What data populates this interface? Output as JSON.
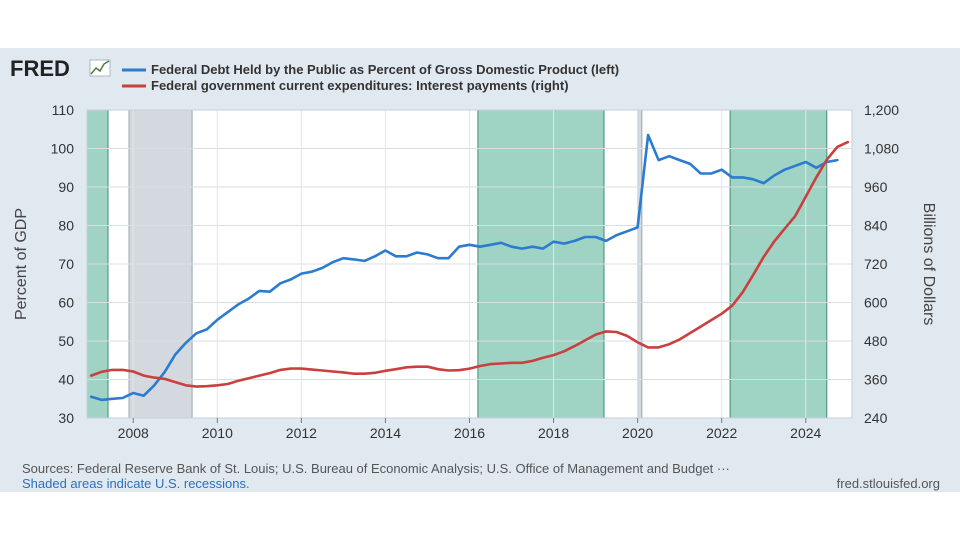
{
  "brand": {
    "logo": "FRED",
    "site": "fred.stlouisfed.org"
  },
  "colors": {
    "panel": "#e1e9f0",
    "series_left": "#2b7bd0",
    "series_right": "#c9403f",
    "recession": "#9fd3c3",
    "recession_alt": "#d3d9df"
  },
  "footer": {
    "sources": "Sources: Federal Reserve Bank of St. Louis; U.S. Bureau of Economic Analysis; U.S. Office of Management and Budget ···",
    "note": "Shaded areas indicate U.S. recessions."
  },
  "chart_data": {
    "type": "line",
    "title": "",
    "xlabel": "",
    "ylabel_left": "Percent of GDP",
    "ylabel_right": "Billions of Dollars",
    "xlim": [
      2006.9,
      2025.1
    ],
    "ylim_left": [
      30,
      110
    ],
    "ylim_right": [
      240,
      1200
    ],
    "x_ticks": [
      2008,
      2010,
      2012,
      2014,
      2016,
      2018,
      2020,
      2022,
      2024
    ],
    "x_tick_labels": [
      "2008",
      "2010",
      "2012",
      "2014",
      "2016",
      "2018",
      "2020",
      "2022",
      "2024"
    ],
    "y_ticks_left": [
      30,
      40,
      50,
      60,
      70,
      80,
      90,
      100,
      110
    ],
    "y_tick_labels_left": [
      "30",
      "40",
      "50",
      "60",
      "70",
      "80",
      "90",
      "100",
      "110"
    ],
    "y_ticks_right": [
      240,
      360,
      480,
      600,
      720,
      840,
      960,
      1080,
      1200
    ],
    "y_tick_labels_right": [
      "240",
      "360",
      "480",
      "600",
      "720",
      "840",
      "960",
      "1,080",
      "1,200"
    ],
    "shaded_periods": [
      {
        "start": 2006.9,
        "end": 2007.4,
        "style": "recession"
      },
      {
        "start": 2007.9,
        "end": 2009.4,
        "style": "recession_alt"
      },
      {
        "start": 2016.2,
        "end": 2019.2,
        "style": "recession"
      },
      {
        "start": 2020.0,
        "end": 2020.1,
        "style": "recession_alt"
      },
      {
        "start": 2022.2,
        "end": 2024.5,
        "style": "recession"
      }
    ],
    "series": [
      {
        "name": "Federal Debt Held by the Public as Percent of Gross Domestic Product (left)",
        "axis": "left",
        "color": "#2b7bd0",
        "x": [
          2007.0,
          2007.25,
          2007.5,
          2007.75,
          2008.0,
          2008.25,
          2008.5,
          2008.75,
          2009.0,
          2009.25,
          2009.5,
          2009.75,
          2010.0,
          2010.25,
          2010.5,
          2010.75,
          2011.0,
          2011.25,
          2011.5,
          2011.75,
          2012.0,
          2012.25,
          2012.5,
          2012.75,
          2013.0,
          2013.25,
          2013.5,
          2013.75,
          2014.0,
          2014.25,
          2014.5,
          2014.75,
          2015.0,
          2015.25,
          2015.5,
          2015.75,
          2016.0,
          2016.25,
          2016.5,
          2016.75,
          2017.0,
          2017.25,
          2017.5,
          2017.75,
          2018.0,
          2018.25,
          2018.5,
          2018.75,
          2019.0,
          2019.25,
          2019.5,
          2019.75,
          2020.0,
          2020.25,
          2020.5,
          2020.75,
          2021.0,
          2021.25,
          2021.5,
          2021.75,
          2022.0,
          2022.25,
          2022.5,
          2022.75,
          2023.0,
          2023.25,
          2023.5,
          2023.75,
          2024.0,
          2024.25,
          2024.5,
          2024.75
        ],
        "values": [
          35.5,
          34.7,
          35.0,
          35.2,
          36.5,
          35.8,
          38.5,
          42.0,
          46.5,
          49.5,
          52.0,
          53.0,
          55.5,
          57.5,
          59.5,
          61.0,
          63.0,
          62.8,
          65.0,
          66.0,
          67.5,
          68.0,
          69.0,
          70.5,
          71.5,
          71.2,
          70.8,
          72.0,
          73.5,
          72.0,
          72.0,
          73.0,
          72.5,
          71.5,
          71.5,
          74.5,
          75.0,
          74.5,
          75.0,
          75.5,
          74.5,
          74.0,
          74.5,
          74.0,
          75.8,
          75.3,
          76.0,
          77.0,
          77.0,
          76.0,
          77.5,
          78.5,
          79.5,
          103.5,
          97.0,
          98.0,
          97.0,
          96.0,
          93.5,
          93.5,
          94.5,
          92.5,
          92.5,
          92.0,
          91.0,
          93.0,
          94.5,
          95.5,
          96.5,
          95.0,
          96.5,
          97.0
        ]
      },
      {
        "name": "Federal government current expenditures: Interest payments (right)",
        "axis": "right",
        "color": "#c9403f",
        "x": [
          2007.0,
          2007.25,
          2007.5,
          2007.75,
          2008.0,
          2008.25,
          2008.5,
          2008.75,
          2009.0,
          2009.25,
          2009.5,
          2009.75,
          2010.0,
          2010.25,
          2010.5,
          2010.75,
          2011.0,
          2011.25,
          2011.5,
          2011.75,
          2012.0,
          2012.25,
          2012.5,
          2012.75,
          2013.0,
          2013.25,
          2013.5,
          2013.75,
          2014.0,
          2014.25,
          2014.5,
          2014.75,
          2015.0,
          2015.25,
          2015.5,
          2015.75,
          2016.0,
          2016.25,
          2016.5,
          2016.75,
          2017.0,
          2017.25,
          2017.5,
          2017.75,
          2018.0,
          2018.25,
          2018.5,
          2018.75,
          2019.0,
          2019.25,
          2019.5,
          2019.75,
          2020.0,
          2020.25,
          2020.5,
          2020.75,
          2021.0,
          2021.25,
          2021.5,
          2021.75,
          2022.0,
          2022.25,
          2022.5,
          2022.75,
          2023.0,
          2023.25,
          2023.5,
          2023.75,
          2024.0,
          2024.25,
          2024.5,
          2024.75,
          2025.0
        ],
        "values": [
          372,
          384,
          390,
          390,
          385,
          372,
          366,
          362,
          352,
          342,
          338,
          339,
          342,
          346,
          356,
          364,
          372,
          380,
          390,
          394,
          394,
          391,
          388,
          385,
          382,
          378,
          378,
          381,
          387,
          392,
          398,
          400,
          400,
          392,
          388,
          389,
          394,
          402,
          408,
          410,
          412,
          412,
          418,
          428,
          436,
          448,
          464,
          482,
          500,
          510,
          508,
          496,
          476,
          460,
          460,
          470,
          485,
          505,
          525,
          545,
          565,
          590,
          632,
          686,
          742,
          790,
          830,
          870,
          930,
          990,
          1045,
          1085,
          1100
        ]
      }
    ]
  }
}
